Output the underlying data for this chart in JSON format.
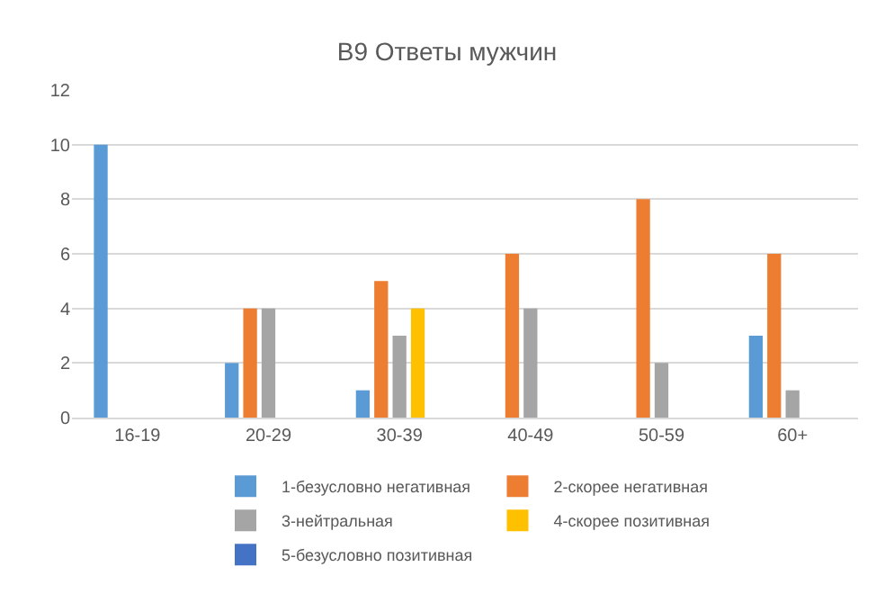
{
  "chart_data": {
    "type": "bar",
    "title": "В9 Ответы мужчин",
    "categories": [
      "16-19",
      "20-29",
      "30-39",
      "40-49",
      "50-59",
      "60+"
    ],
    "series": [
      {
        "name": "1-безусловно негативная",
        "color": "#5b9bd5",
        "values": [
          10,
          2,
          1,
          0,
          0,
          3
        ]
      },
      {
        "name": "2-скорее негативная",
        "color": "#ed7d31",
        "values": [
          0,
          4,
          5,
          6,
          8,
          6
        ]
      },
      {
        "name": "3-нейтральная",
        "color": "#a5a5a5",
        "values": [
          0,
          4,
          3,
          4,
          2,
          1
        ]
      },
      {
        "name": "4-скорее позитивная",
        "color": "#ffc000",
        "values": [
          0,
          0,
          4,
          0,
          0,
          0
        ]
      },
      {
        "name": "5-безусловно позитивная",
        "color": "#4472c4",
        "values": [
          0,
          0,
          0,
          0,
          0,
          0
        ]
      }
    ],
    "ylim": [
      0,
      12
    ],
    "yticks": [
      0,
      2,
      4,
      6,
      8,
      10,
      12
    ],
    "grid": "y",
    "legend": "bottom"
  }
}
